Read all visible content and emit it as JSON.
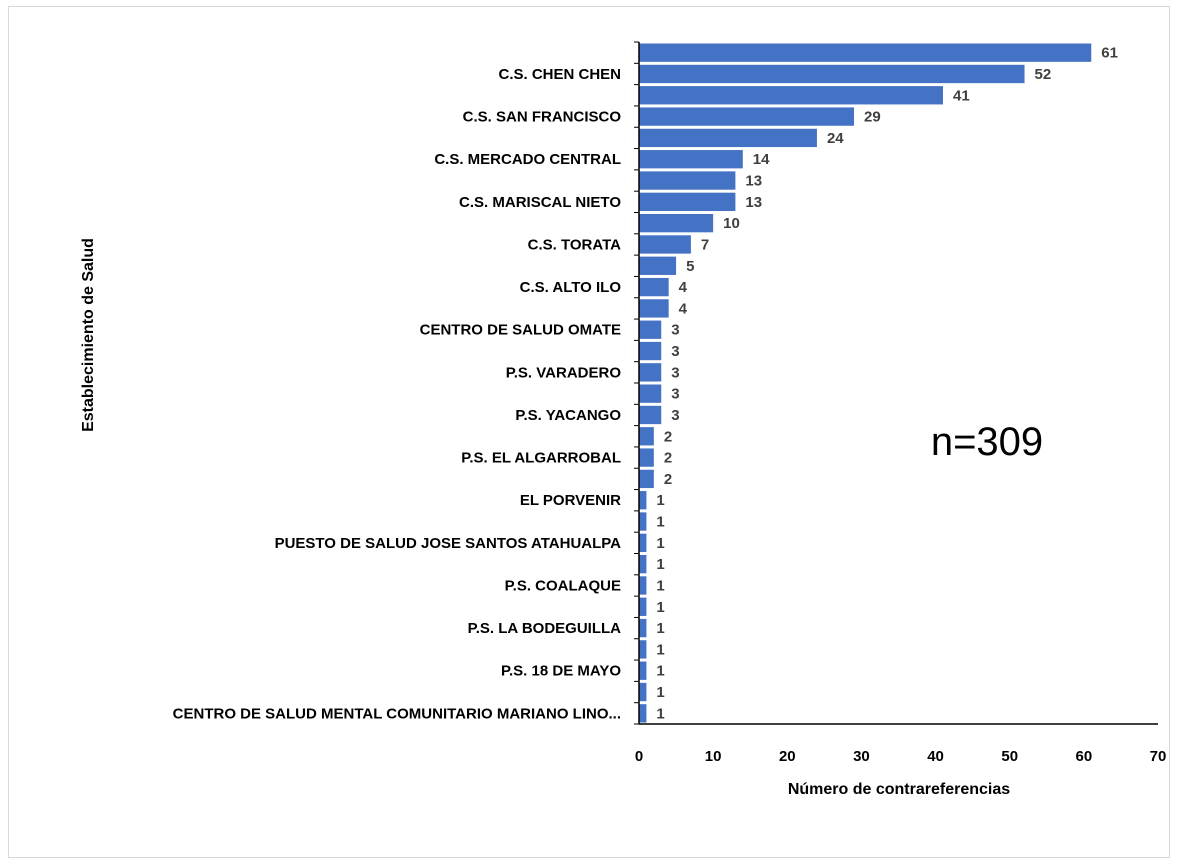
{
  "chart_data": {
    "type": "bar",
    "orientation": "horizontal",
    "xlabel": "Número de contrareferencias",
    "ylabel": "Establecimiento de Salud",
    "annotation": "n=309",
    "xlim": [
      0,
      70
    ],
    "xticks": [
      0,
      10,
      20,
      30,
      40,
      50,
      60,
      70
    ],
    "bar_color": "#4472C4",
    "grid": false,
    "categories": [
      "",
      "C.S. CHEN CHEN",
      "",
      "C.S. SAN FRANCISCO",
      "",
      "C.S. MERCADO CENTRAL",
      "",
      "C.S. MARISCAL NIETO",
      "",
      "C.S. TORATA",
      "",
      "C.S. ALTO ILO",
      "",
      "CENTRO DE SALUD OMATE",
      "",
      "P.S. VARADERO",
      "",
      "P.S. YACANGO",
      "",
      "P.S. EL ALGARROBAL",
      "",
      "EL PORVENIR",
      "",
      "PUESTO DE SALUD JOSE SANTOS ATAHUALPA",
      "",
      "P.S. COALAQUE",
      "",
      "P.S. LA BODEGUILLA",
      "",
      "P.S. 18 DE MAYO",
      "",
      "CENTRO DE SALUD MENTAL COMUNITARIO MARIANO LINO..."
    ],
    "values": [
      61,
      52,
      41,
      29,
      24,
      14,
      13,
      13,
      10,
      7,
      5,
      4,
      4,
      3,
      3,
      3,
      3,
      3,
      2,
      2,
      2,
      1,
      1,
      1,
      1,
      1,
      1,
      1,
      1,
      1,
      1,
      1
    ]
  }
}
